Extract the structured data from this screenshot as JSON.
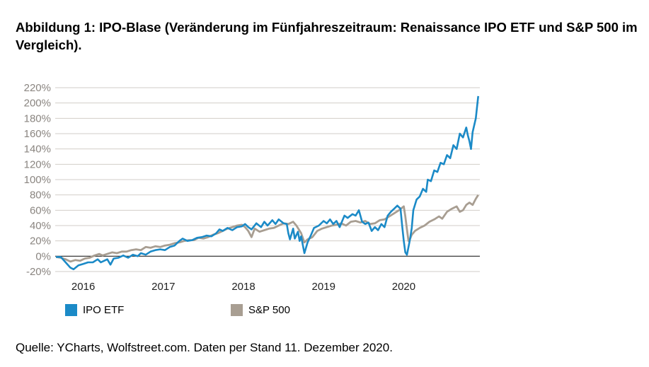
{
  "title": "Abbildung 1: IPO-Blase (Veränderung im Fünfjahreszeitraum: Renaissance IPO ETF und S&P 500 im Vergleich).",
  "source": "Quelle: YCharts, Wolfstreet.com. Daten per Stand 11. Dezember 2020.",
  "chart_data": {
    "type": "line",
    "y_ticks": [
      "220%",
      "200%",
      "180%",
      "160%",
      "140%",
      "120%",
      "100%",
      "80%",
      "60%",
      "40%",
      "20%",
      "0%",
      "-20%"
    ],
    "ylim": [
      -20,
      220
    ],
    "xlim": [
      2015.65,
      2020.95
    ],
    "x_ticks": [
      {
        "label": "2016",
        "x": 2016
      },
      {
        "label": "2017",
        "x": 2017
      },
      {
        "label": "2018",
        "x": 2018
      },
      {
        "label": "2019",
        "x": 2019
      },
      {
        "label": "2020",
        "x": 2020
      }
    ],
    "grid": true,
    "legend_position": "bottom",
    "series": [
      {
        "name": "IPO ETF",
        "color": "#1b8ac7",
        "points": [
          [
            2015.66,
            -1
          ],
          [
            2015.72,
            -1
          ],
          [
            2015.78,
            -8
          ],
          [
            2015.84,
            -15
          ],
          [
            2015.88,
            -17
          ],
          [
            2015.94,
            -12
          ],
          [
            2016.0,
            -10
          ],
          [
            2016.06,
            -8
          ],
          [
            2016.12,
            -8
          ],
          [
            2016.18,
            -4
          ],
          [
            2016.22,
            -8
          ],
          [
            2016.26,
            -6
          ],
          [
            2016.3,
            -4
          ],
          [
            2016.34,
            -11
          ],
          [
            2016.38,
            -3
          ],
          [
            2016.44,
            -2
          ],
          [
            2016.5,
            1
          ],
          [
            2016.56,
            -2
          ],
          [
            2016.62,
            2
          ],
          [
            2016.68,
            0
          ],
          [
            2016.72,
            4
          ],
          [
            2016.78,
            2
          ],
          [
            2016.84,
            6
          ],
          [
            2016.9,
            8
          ],
          [
            2016.96,
            9
          ],
          [
            2017.02,
            8
          ],
          [
            2017.08,
            12
          ],
          [
            2017.14,
            14
          ],
          [
            2017.2,
            20
          ],
          [
            2017.24,
            23
          ],
          [
            2017.3,
            20
          ],
          [
            2017.36,
            21
          ],
          [
            2017.42,
            24
          ],
          [
            2017.48,
            25
          ],
          [
            2017.54,
            27
          ],
          [
            2017.6,
            26
          ],
          [
            2017.66,
            30
          ],
          [
            2017.7,
            35
          ],
          [
            2017.74,
            33
          ],
          [
            2017.8,
            37
          ],
          [
            2017.86,
            34
          ],
          [
            2017.92,
            38
          ],
          [
            2017.98,
            39
          ],
          [
            2018.02,
            42
          ],
          [
            2018.06,
            38
          ],
          [
            2018.1,
            35
          ],
          [
            2018.16,
            43
          ],
          [
            2018.22,
            38
          ],
          [
            2018.26,
            45
          ],
          [
            2018.3,
            40
          ],
          [
            2018.36,
            47
          ],
          [
            2018.4,
            42
          ],
          [
            2018.44,
            48
          ],
          [
            2018.5,
            43
          ],
          [
            2018.54,
            42
          ],
          [
            2018.56,
            30
          ],
          [
            2018.58,
            22
          ],
          [
            2018.62,
            36
          ],
          [
            2018.64,
            23
          ],
          [
            2018.68,
            32
          ],
          [
            2018.7,
            20
          ],
          [
            2018.72,
            26
          ],
          [
            2018.76,
            4
          ],
          [
            2018.8,
            18
          ],
          [
            2018.84,
            27
          ],
          [
            2018.88,
            37
          ],
          [
            2018.94,
            40
          ],
          [
            2019.0,
            46
          ],
          [
            2019.04,
            43
          ],
          [
            2019.08,
            48
          ],
          [
            2019.12,
            42
          ],
          [
            2019.16,
            46
          ],
          [
            2019.2,
            38
          ],
          [
            2019.26,
            53
          ],
          [
            2019.3,
            50
          ],
          [
            2019.36,
            55
          ],
          [
            2019.4,
            53
          ],
          [
            2019.44,
            60
          ],
          [
            2019.48,
            45
          ],
          [
            2019.52,
            42
          ],
          [
            2019.56,
            44
          ],
          [
            2019.6,
            33
          ],
          [
            2019.64,
            38
          ],
          [
            2019.68,
            34
          ],
          [
            2019.72,
            42
          ],
          [
            2019.76,
            38
          ],
          [
            2019.8,
            53
          ],
          [
            2019.84,
            58
          ],
          [
            2019.88,
            62
          ],
          [
            2019.92,
            66
          ],
          [
            2019.96,
            62
          ],
          [
            2019.98,
            40
          ],
          [
            2020.0,
            20
          ],
          [
            2020.02,
            5
          ],
          [
            2020.04,
            2
          ],
          [
            2020.06,
            12
          ],
          [
            2020.08,
            23
          ],
          [
            2020.1,
            37
          ],
          [
            2020.12,
            60
          ],
          [
            2020.16,
            74
          ],
          [
            2020.2,
            78
          ],
          [
            2020.24,
            88
          ],
          [
            2020.28,
            84
          ],
          [
            2020.3,
            100
          ],
          [
            2020.34,
            98
          ],
          [
            2020.38,
            112
          ],
          [
            2020.42,
            110
          ],
          [
            2020.46,
            122
          ],
          [
            2020.5,
            120
          ],
          [
            2020.54,
            132
          ],
          [
            2020.58,
            128
          ],
          [
            2020.62,
            145
          ],
          [
            2020.66,
            140
          ],
          [
            2020.7,
            160
          ],
          [
            2020.74,
            155
          ],
          [
            2020.78,
            168
          ],
          [
            2020.8,
            158
          ],
          [
            2020.82,
            150
          ],
          [
            2020.84,
            140
          ],
          [
            2020.86,
            162
          ],
          [
            2020.9,
            180
          ],
          [
            2020.93,
            209
          ]
        ]
      },
      {
        "name": "S&P 500",
        "color": "#a89e92",
        "points": [
          [
            2015.66,
            -1
          ],
          [
            2015.72,
            -2
          ],
          [
            2015.78,
            -4
          ],
          [
            2015.84,
            -7
          ],
          [
            2015.9,
            -5
          ],
          [
            2015.96,
            -6
          ],
          [
            2016.02,
            -3
          ],
          [
            2016.08,
            -2
          ],
          [
            2016.14,
            1
          ],
          [
            2016.2,
            3
          ],
          [
            2016.24,
            1
          ],
          [
            2016.3,
            3
          ],
          [
            2016.36,
            5
          ],
          [
            2016.42,
            4
          ],
          [
            2016.48,
            6
          ],
          [
            2016.54,
            6
          ],
          [
            2016.6,
            8
          ],
          [
            2016.66,
            9
          ],
          [
            2016.72,
            8
          ],
          [
            2016.78,
            12
          ],
          [
            2016.84,
            11
          ],
          [
            2016.9,
            13
          ],
          [
            2016.96,
            12
          ],
          [
            2017.02,
            14
          ],
          [
            2017.08,
            15
          ],
          [
            2017.14,
            17
          ],
          [
            2017.2,
            18
          ],
          [
            2017.26,
            20
          ],
          [
            2017.32,
            21
          ],
          [
            2017.38,
            21
          ],
          [
            2017.44,
            24
          ],
          [
            2017.5,
            23
          ],
          [
            2017.56,
            25
          ],
          [
            2017.62,
            28
          ],
          [
            2017.68,
            30
          ],
          [
            2017.74,
            33
          ],
          [
            2017.8,
            36
          ],
          [
            2017.86,
            38
          ],
          [
            2017.92,
            40
          ],
          [
            2017.98,
            41
          ],
          [
            2018.02,
            38
          ],
          [
            2018.06,
            33
          ],
          [
            2018.1,
            25
          ],
          [
            2018.14,
            36
          ],
          [
            2018.2,
            32
          ],
          [
            2018.26,
            34
          ],
          [
            2018.32,
            36
          ],
          [
            2018.38,
            37
          ],
          [
            2018.44,
            40
          ],
          [
            2018.5,
            43
          ],
          [
            2018.56,
            42
          ],
          [
            2018.62,
            45
          ],
          [
            2018.66,
            40
          ],
          [
            2018.72,
            30
          ],
          [
            2018.76,
            18
          ],
          [
            2018.8,
            22
          ],
          [
            2018.86,
            25
          ],
          [
            2018.92,
            33
          ],
          [
            2018.98,
            36
          ],
          [
            2019.04,
            38
          ],
          [
            2019.1,
            40
          ],
          [
            2019.16,
            41
          ],
          [
            2019.22,
            43
          ],
          [
            2019.28,
            40
          ],
          [
            2019.34,
            45
          ],
          [
            2019.4,
            46
          ],
          [
            2019.46,
            44
          ],
          [
            2019.52,
            46
          ],
          [
            2019.58,
            42
          ],
          [
            2019.64,
            43
          ],
          [
            2019.7,
            47
          ],
          [
            2019.76,
            48
          ],
          [
            2019.82,
            52
          ],
          [
            2019.88,
            56
          ],
          [
            2019.94,
            60
          ],
          [
            2020.0,
            65
          ],
          [
            2020.02,
            52
          ],
          [
            2020.04,
            35
          ],
          [
            2020.06,
            20
          ],
          [
            2020.08,
            23
          ],
          [
            2020.1,
            28
          ],
          [
            2020.14,
            33
          ],
          [
            2020.2,
            37
          ],
          [
            2020.26,
            40
          ],
          [
            2020.32,
            45
          ],
          [
            2020.38,
            48
          ],
          [
            2020.44,
            52
          ],
          [
            2020.48,
            49
          ],
          [
            2020.54,
            58
          ],
          [
            2020.6,
            62
          ],
          [
            2020.66,
            65
          ],
          [
            2020.7,
            58
          ],
          [
            2020.74,
            60
          ],
          [
            2020.78,
            67
          ],
          [
            2020.82,
            70
          ],
          [
            2020.86,
            67
          ],
          [
            2020.9,
            75
          ],
          [
            2020.93,
            80
          ]
        ]
      }
    ]
  }
}
